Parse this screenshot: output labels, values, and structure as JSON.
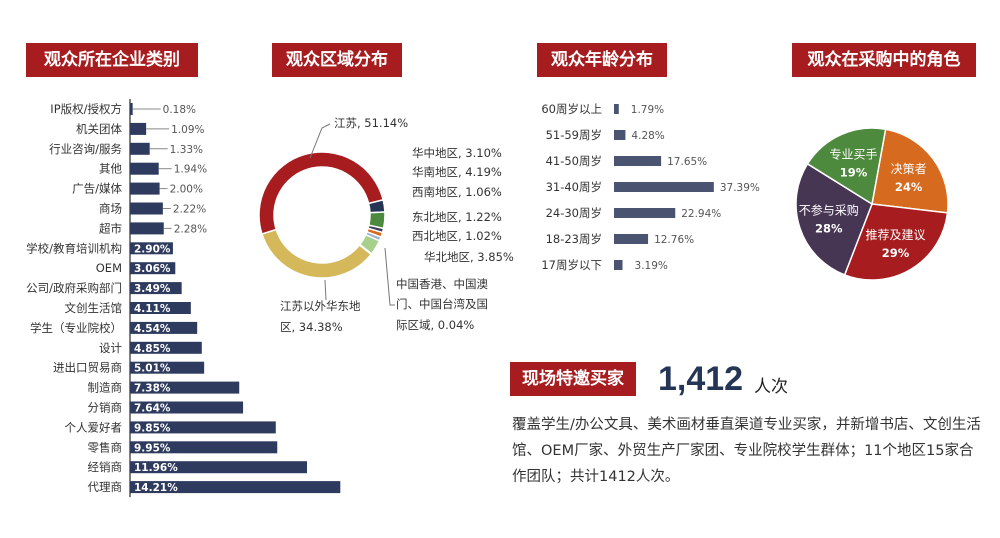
{
  "titles": {
    "industry": "观众所在企业类别",
    "region": "观众区域分布",
    "age": "观众年龄分布",
    "role": "观众在采购中的角色",
    "buyers": "现场特邀买家"
  },
  "buyers": {
    "count": "1,412",
    "unit": "人次",
    "description": "覆盖学生/办公文具、美术画材垂直渠道专业买家，并新增书店、文创生活馆、OEM厂家、外贸生产厂家团、专业院校学生群体；11个地区15家合作团队；共计1412人次。"
  },
  "colors": {
    "accent": "#a61c1f",
    "bar": "#2e3b5e",
    "age_bar": "#4a5470"
  },
  "chart_data": [
    {
      "type": "bar",
      "title": "观众所在企业类别",
      "unit": "%",
      "categories": [
        "IP版权/授权方",
        "机关团体",
        "行业咨询/服务",
        "其他",
        "广告/媒体",
        "商场",
        "超市",
        "学校/教育培训机构",
        "OEM",
        "公司/政府采购部门",
        "文创生活馆",
        "学生（专业院校）",
        "设计",
        "进出口贸易商",
        "制造商",
        "分销商",
        "个人爱好者",
        "零售商",
        "经销商",
        "代理商"
      ],
      "values": [
        0.18,
        1.09,
        1.33,
        1.94,
        2.0,
        2.22,
        2.28,
        2.9,
        3.06,
        3.49,
        4.11,
        4.54,
        4.85,
        5.01,
        7.38,
        7.64,
        9.85,
        9.95,
        11.96,
        14.21
      ],
      "labels": [
        "0.18%",
        "1.09%",
        "1.33%",
        "1.94%",
        "2.00%",
        "2.22%",
        "2.28%",
        "2.90%",
        "3.06%",
        "3.49%",
        "4.11%",
        "4.54%",
        "4.85%",
        "5.01%",
        "7.38%",
        "7.64%",
        "9.85%",
        "9.95%",
        "11.96%",
        "14.21%"
      ]
    },
    {
      "type": "pie",
      "title": "观众区域分布",
      "donut": true,
      "slices": [
        {
          "name": "江苏",
          "value": 51.14,
          "label": "江苏, 51.14%",
          "color": "#a61c1f"
        },
        {
          "name": "华中地区",
          "value": 3.1,
          "label": "华中地区, 3.10%",
          "color": "#243556"
        },
        {
          "name": "华南地区",
          "value": 4.19,
          "label": "华南地区, 4.19%",
          "color": "#4e8a3e"
        },
        {
          "name": "西南地区",
          "value": 1.06,
          "label": "西南地区, 1.06%",
          "color": "#3c3a5a"
        },
        {
          "name": "东北地区",
          "value": 1.22,
          "label": "东北地区, 1.22%",
          "color": "#d66a1f"
        },
        {
          "name": "西北地区",
          "value": 1.02,
          "label": "西北地区, 1.02%",
          "color": "#9ab0d6"
        },
        {
          "name": "华北地区",
          "value": 3.85,
          "label": "华北地区, 3.85%",
          "color": "#a8d08d"
        },
        {
          "name": "中国香港、中国澳门、中国台湾及国际区域",
          "value": 0.04,
          "label": "中国香港、中国澳门、中国台湾及国际区域, 0.04%",
          "color": "#888888"
        },
        {
          "name": "江苏以外华东地区",
          "value": 34.38,
          "label": "江苏以外华东地区, 34.38%",
          "color": "#d4b85a"
        }
      ]
    },
    {
      "type": "bar",
      "title": "观众年龄分布",
      "unit": "%",
      "categories": [
        "60周岁以上",
        "51-59周岁",
        "41-50周岁",
        "31-40周岁",
        "24-30周岁",
        "18-23周岁",
        "17周岁以下"
      ],
      "values": [
        1.79,
        4.28,
        17.65,
        37.39,
        22.94,
        12.76,
        3.19
      ],
      "labels": [
        "1.79%",
        "4.28%",
        "17.65%",
        "37.39%",
        "22.94%",
        "12.76%",
        "3.19%"
      ]
    },
    {
      "type": "pie",
      "title": "观众在采购中的角色",
      "slices": [
        {
          "name": "决策者",
          "value": 24,
          "label": "24%",
          "color": "#d66a1f"
        },
        {
          "name": "推荐及建议",
          "value": 29,
          "label": "29%",
          "color": "#a61c1f"
        },
        {
          "name": "不参与采购",
          "value": 28,
          "label": "28%",
          "color": "#463553"
        },
        {
          "name": "专业买手",
          "value": 19,
          "label": "19%",
          "color": "#4e8a3e"
        }
      ]
    }
  ]
}
